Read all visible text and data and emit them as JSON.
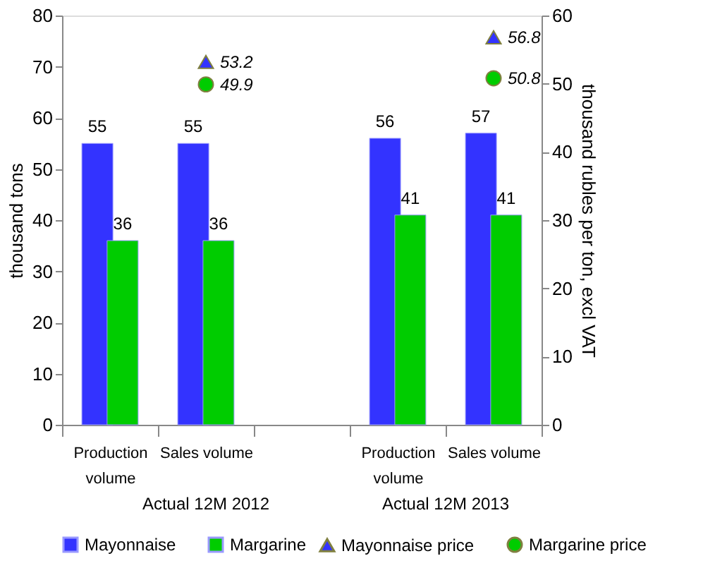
{
  "chart_data": {
    "type": "bar",
    "categories": [
      "Production volume",
      "Sales volume",
      null,
      "Production volume",
      "Sales volume"
    ],
    "annotations": [
      "Actual 12M 2012",
      "Actual 12M 2013"
    ],
    "ylabel": "thousand tons",
    "y2label": "thousand rubles per ton, excl VAT",
    "ylim": [
      0,
      80
    ],
    "yticks": [
      0,
      10,
      20,
      30,
      40,
      50,
      60,
      70,
      80
    ],
    "y2lim": [
      0,
      60
    ],
    "y2ticks": [
      0,
      10,
      20,
      30,
      40,
      50,
      60
    ],
    "series": [
      {
        "name": "Mayonnaise",
        "color": "#3333ff",
        "values": [
          55,
          55,
          null,
          56,
          57
        ]
      },
      {
        "name": "Margarine",
        "color": "#00cc00",
        "values": [
          36,
          36,
          null,
          41,
          41
        ]
      },
      {
        "name": "Mayonnaise price",
        "type": "scatter",
        "axis": "y2",
        "marker": "triangle",
        "color": "#3333ff",
        "values": [
          null,
          53.2,
          null,
          null,
          56.8
        ]
      },
      {
        "name": "Margarine price",
        "type": "scatter",
        "axis": "y2",
        "marker": "circle",
        "color": "#00cc00",
        "values": [
          null,
          49.9,
          null,
          null,
          50.8
        ]
      }
    ],
    "data_labels": true,
    "grid": false,
    "legend": "bottom"
  }
}
